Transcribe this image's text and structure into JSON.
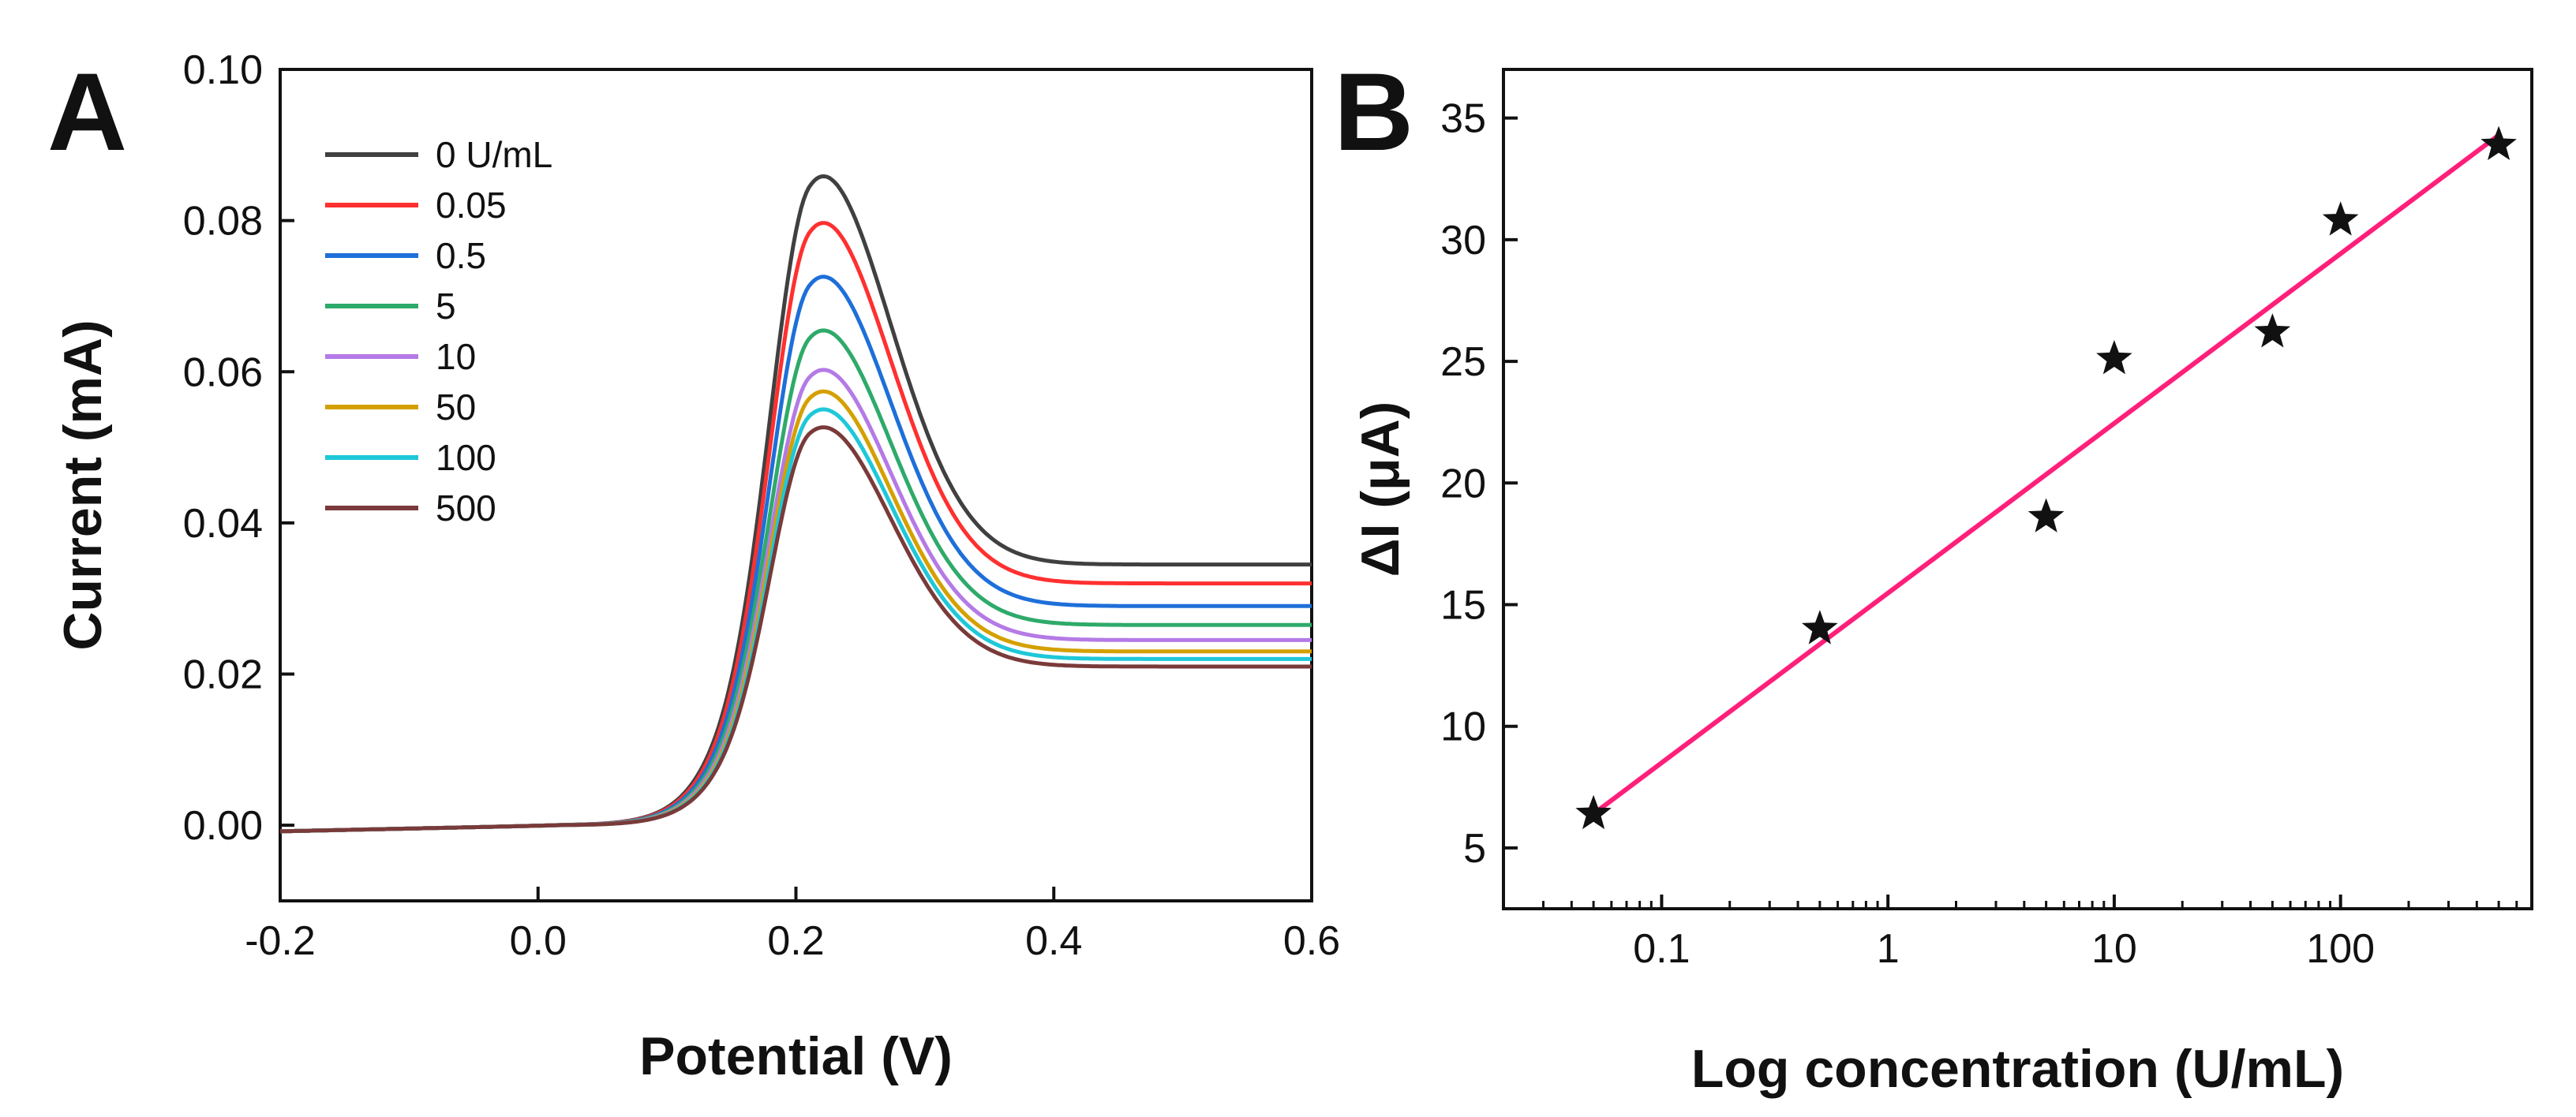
{
  "chart_data": [
    {
      "panel": "A",
      "type": "line",
      "title": "",
      "xlabel": "Potential (V)",
      "ylabel": "Current (mA)",
      "xlim": [
        -0.2,
        0.6
      ],
      "ylim": [
        -0.01,
        0.1
      ],
      "xticks": [
        "-0.2",
        "0.0",
        "0.2",
        "0.4",
        "0.6"
      ],
      "yticks": [
        "0.00",
        "0.02",
        "0.04",
        "0.06",
        "0.08",
        "0.10"
      ],
      "grid": false,
      "legend_position": "top-left",
      "peak_potential": 0.21,
      "series": [
        {
          "name": "0 U/mL",
          "color": "#404040",
          "peak": 0.0905,
          "end_value": 0.0345
        },
        {
          "name": "0.05",
          "color": "#ff3030",
          "peak": 0.084,
          "end_value": 0.032
        },
        {
          "name": "0.5",
          "color": "#1e6fd9",
          "peak": 0.0765,
          "end_value": 0.029
        },
        {
          "name": "5",
          "color": "#2eaa6a",
          "peak": 0.069,
          "end_value": 0.0265
        },
        {
          "name": "10",
          "color": "#b47ae6",
          "peak": 0.0635,
          "end_value": 0.0245
        },
        {
          "name": "50",
          "color": "#d4a000",
          "peak": 0.0605,
          "end_value": 0.023
        },
        {
          "name": "100",
          "color": "#1ec8d8",
          "peak": 0.058,
          "end_value": 0.022
        },
        {
          "name": "500",
          "color": "#7a3a3a",
          "peak": 0.0555,
          "end_value": 0.021
        }
      ]
    },
    {
      "panel": "B",
      "type": "scatter",
      "title": "",
      "xlabel": "Log concentration (U/mL)",
      "ylabel": "ΔI (μA)",
      "xscale": "log",
      "xlim": [
        0.02,
        700
      ],
      "ylim": [
        2.5,
        37
      ],
      "xticks": [
        "0.1",
        "1",
        "10",
        "100"
      ],
      "yticks": [
        "5",
        "10",
        "15",
        "20",
        "25",
        "30",
        "35"
      ],
      "grid": false,
      "marker": "star",
      "marker_color": "#111111",
      "fit_color": "#ff1f7a",
      "points": [
        {
          "x": 0.05,
          "y": 6.4
        },
        {
          "x": 0.5,
          "y": 14.0
        },
        {
          "x": 5,
          "y": 18.6
        },
        {
          "x": 10,
          "y": 25.1
        },
        {
          "x": 50,
          "y": 26.2
        },
        {
          "x": 100,
          "y": 30.8
        },
        {
          "x": 500,
          "y": 33.9
        }
      ],
      "fit_line": {
        "x_start": 0.05,
        "y_start": 6.4,
        "x_end": 500,
        "y_end": 34.3
      }
    }
  ]
}
